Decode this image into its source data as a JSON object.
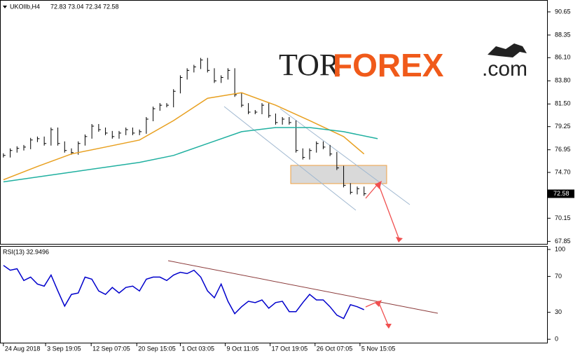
{
  "header": {
    "symbol": "UKOIlb,H4",
    "ohlc": [
      72.83,
      73.04,
      72.34,
      72.58
    ]
  },
  "logo": {
    "left": "TOR",
    "right": "FOREX",
    "suffix": ".com"
  },
  "chart_data": [
    {
      "type": "price",
      "xlim": [
        -0.5,
        80
      ],
      "xticks": [
        {
          "value": 0,
          "label": "24 Aug 2018"
        },
        {
          "value": 6.2,
          "label": "3 Sep 19:05"
        },
        {
          "value": 12.9,
          "label": "12 Sep 07:05"
        },
        {
          "value": 19.6,
          "label": "20 Sep 15:05"
        },
        {
          "value": 26,
          "label": "1 Oct 03:05"
        },
        {
          "value": 32.6,
          "label": "9 Oct 11:05"
        },
        {
          "value": 39.2,
          "label": "17 Oct 19:05"
        },
        {
          "value": 45.8,
          "label": "26 Oct 07:05"
        },
        {
          "value": 52.4,
          "label": "5 Nov 15:05"
        }
      ],
      "ylim": [
        67.6,
        91.76
      ],
      "yticks": [
        90.65,
        88.35,
        {
          "value": 86.1,
          "label": "86.10"
        },
        {
          "value": 83.8,
          "label": "83.80"
        },
        {
          "value": 81.5,
          "label": "81.50"
        },
        79.25,
        76.95,
        {
          "value": 74.7,
          "label": "74.70"
        },
        70.15,
        67.85
      ],
      "series": [
        {
          "color": "#000000",
          "values": [
            76.39,
            76.88,
            77.09,
            77.22,
            77.92,
            78.05,
            77.57,
            78.95,
            77.57,
            76.88,
            76.67,
            77.57,
            78.26,
            79.3,
            78.95,
            78.61,
            78.26,
            78.61,
            78.95,
            78.61,
            78.75,
            79.99,
            81.03,
            81.38,
            81.38,
            82.76,
            84.14,
            84.84,
            85.18,
            85.87,
            84.84,
            83.8,
            84.14,
            84.84,
            82.41,
            81.38,
            80.69,
            80.69,
            81.38,
            80.34,
            79.65,
            79.99,
            79.65,
            76.88,
            76.19,
            76.88,
            77.57,
            77.22,
            76.53,
            75.15,
            73.42,
            72.73,
            73.08,
            72.58
          ]
        },
        {
          "color": "#e8a020",
          "x": [
            0,
            5,
            10,
            15,
            20,
            25,
            30,
            35,
            40,
            45,
            50,
            53
          ],
          "values": [
            73.97,
            75.29,
            76.53,
            77.22,
            77.92,
            79.85,
            82.07,
            82.62,
            81.38,
            79.85,
            78.26,
            76.53
          ]
        },
        {
          "color": "#20b0a0",
          "x": [
            0,
            10,
            20,
            25,
            30,
            35,
            40,
            45,
            50,
            55
          ],
          "values": [
            73.76,
            74.73,
            75.7,
            76.39,
            77.57,
            78.75,
            79.16,
            79.16,
            78.75,
            78.05
          ]
        }
      ]
    },
    {
      "type": "line",
      "title": "RSI(13) 32.9496",
      "xlim": [
        -0.5,
        80
      ],
      "ylim": [
        -3.8,
        103.1
      ],
      "yticks": [
        100,
        70,
        30,
        0
      ],
      "series": [
        {
          "color": "#0000cc",
          "values": [
            82.3,
            76.9,
            78.5,
            65.4,
            69.2,
            61.5,
            59.2,
            71.5,
            53.8,
            36.9,
            50,
            51.5,
            69.2,
            66.9,
            53.8,
            50,
            57.7,
            51.5,
            57.7,
            59.2,
            53.8,
            66.9,
            69.2,
            69.2,
            65.4,
            71.5,
            74.6,
            73.1,
            76.9,
            69.2,
            53.8,
            46.2,
            61.5,
            42.3,
            28.5,
            36.2,
            42.3,
            40.8,
            43.8,
            34.6,
            40.8,
            42.3,
            30.8,
            30.8,
            40.8,
            50,
            43.8,
            43.8,
            36.2,
            26.9,
            23.1,
            38.5,
            36.2,
            32.9496
          ]
        }
      ]
    }
  ]
}
